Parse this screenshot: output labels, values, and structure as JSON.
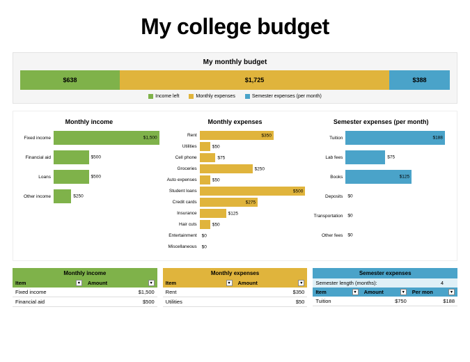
{
  "title": "My college budget",
  "colors": {
    "green": "#7fb24a",
    "yellow": "#e0b43c",
    "blue": "#4aa3c9",
    "green_light": "#c3dba6",
    "yellow_light": "#f0dca0",
    "blue_light": "#b7dced",
    "panel_bg": "#f5f5f5"
  },
  "monthly_budget": {
    "title": "My monthly budget",
    "segments": [
      {
        "label": "$638",
        "value": 638,
        "color": "#7fb24a"
      },
      {
        "label": "$1,725",
        "value": 1725,
        "color": "#e0b43c"
      },
      {
        "label": "$388",
        "value": 388,
        "color": "#4aa3c9"
      }
    ],
    "total": 2751,
    "legend": [
      {
        "label": "Income left",
        "color": "#7fb24a"
      },
      {
        "label": "Monthly expenses",
        "color": "#e0b43c"
      },
      {
        "label": "Semester expenses (per month)",
        "color": "#4aa3c9"
      }
    ]
  },
  "charts": {
    "income": {
      "title": "Monthly income",
      "color": "#7fb24a",
      "max": 1500,
      "label_width": 50,
      "bars": [
        {
          "label": "Fixed income",
          "value": 1500,
          "display": "$1,500"
        },
        {
          "label": "Financial aid",
          "value": 500,
          "display": "$500"
        },
        {
          "label": "Loans",
          "value": 500,
          "display": "$500"
        },
        {
          "label": "Other income",
          "value": 250,
          "display": "$250"
        }
      ]
    },
    "expenses": {
      "title": "Monthly expenses",
      "color": "#e0b43c",
      "max": 500,
      "label_width": 50,
      "bars": [
        {
          "label": "Rent",
          "value": 350,
          "display": "$350"
        },
        {
          "label": "Utilities",
          "value": 50,
          "display": "$50"
        },
        {
          "label": "Cell phone",
          "value": 75,
          "display": "$75"
        },
        {
          "label": "Groceries",
          "value": 250,
          "display": "$250"
        },
        {
          "label": "Auto expenses",
          "value": 50,
          "display": "$50"
        },
        {
          "label": "Student loans",
          "value": 500,
          "display": "$500"
        },
        {
          "label": "Credit cards",
          "value": 275,
          "display": "$275"
        },
        {
          "label": "Insurance",
          "value": 125,
          "display": "$125"
        },
        {
          "label": "Hair cuts",
          "value": 50,
          "display": "$50"
        },
        {
          "label": "Entertainment",
          "value": 0,
          "display": "$0"
        },
        {
          "label": "Miscellaneous",
          "value": 0,
          "display": "$0"
        }
      ]
    },
    "semester": {
      "title": "Semester expenses (per month)",
      "color": "#4aa3c9",
      "max": 200,
      "label_width": 50,
      "bars": [
        {
          "label": "Tuition",
          "value": 188,
          "display": "$188"
        },
        {
          "label": "Lab fees",
          "value": 75,
          "display": "$75"
        },
        {
          "label": "Books",
          "value": 125,
          "display": "$125"
        },
        {
          "label": "Deposits",
          "value": 0,
          "display": "$0"
        },
        {
          "label": "Transportation",
          "value": 0,
          "display": "$0"
        },
        {
          "label": "Other fees",
          "value": 0,
          "display": "$0"
        }
      ]
    }
  },
  "tables": {
    "income": {
      "header": "Monthly income",
      "header_bg": "#7fb24a",
      "th_bg": "#7fb24a",
      "columns": [
        "Item",
        "Amount"
      ],
      "rows": [
        [
          "Fixed income",
          "$1,500"
        ],
        [
          "Financial aid",
          "$500"
        ]
      ]
    },
    "expenses": {
      "header": "Monthly expenses",
      "header_bg": "#e0b43c",
      "th_bg": "#e0b43c",
      "columns": [
        "Item",
        "Amount"
      ],
      "rows": [
        [
          "Rent",
          "$350"
        ],
        [
          "Utilities",
          "$50"
        ]
      ]
    },
    "semester": {
      "header": "Semester expenses",
      "header_bg": "#4aa3c9",
      "th_bg": "#4aa3c9",
      "sem_length_label": "Semester length (months):",
      "sem_length_value": "4",
      "columns": [
        "Item",
        "Amount",
        "Per mon"
      ],
      "rows": [
        [
          "Tuition",
          "$750",
          "$188"
        ]
      ]
    }
  }
}
